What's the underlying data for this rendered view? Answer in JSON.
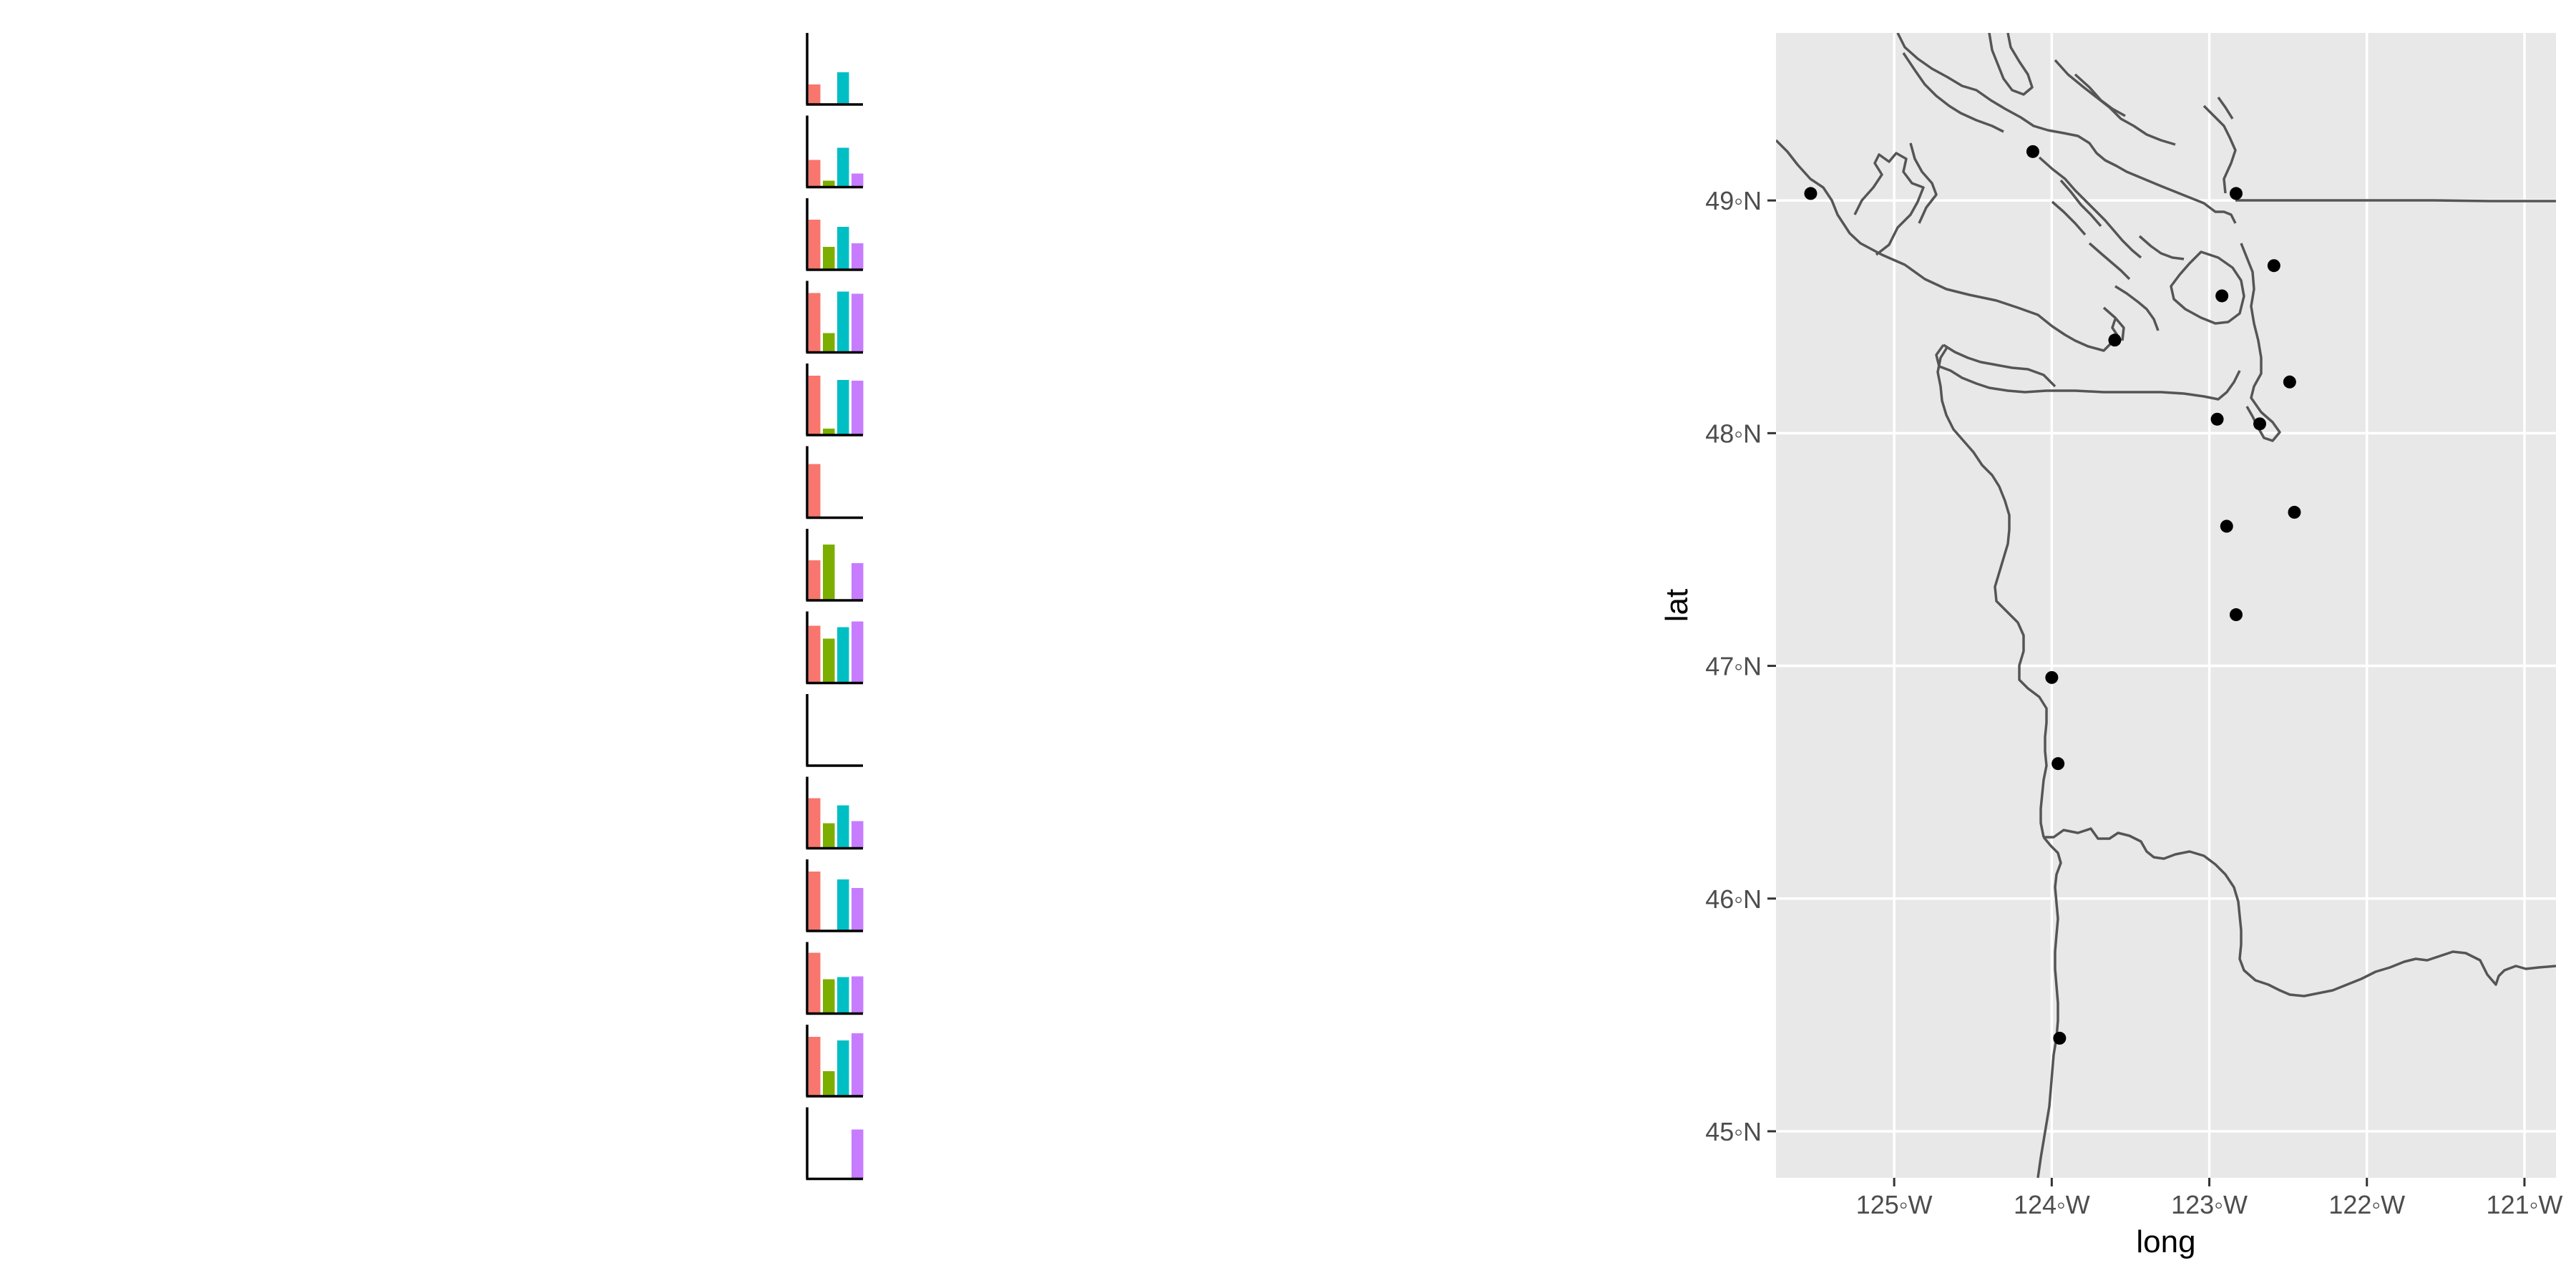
{
  "map": {
    "xlabel": "long",
    "ylabel": "lat",
    "x_ticks": [
      "125◦W",
      "124◦W",
      "123◦W",
      "122◦W",
      "121◦W"
    ],
    "x_tick_values": [
      -125,
      -124,
      -123,
      -122,
      -121
    ],
    "y_ticks": [
      "45◦N",
      "46◦N",
      "47◦N",
      "48◦N",
      "49◦N"
    ],
    "y_tick_values": [
      45,
      46,
      47,
      48,
      49
    ],
    "xlim": [
      -125.75,
      -120.8
    ],
    "ylim": [
      44.8,
      49.72
    ],
    "panel_color": "#e8e8e8",
    "gridline_color": "#ffffff",
    "outline_color": "#555555",
    "point_color": "#000000"
  },
  "chart_data": [
    {
      "type": "scatter",
      "xlabel": "long",
      "ylabel": "lat",
      "points": [
        {
          "long": -125.53,
          "lat": 49.03
        },
        {
          "long": -124.12,
          "lat": 49.21
        },
        {
          "long": -122.83,
          "lat": 49.03
        },
        {
          "long": -122.59,
          "lat": 48.72
        },
        {
          "long": -122.92,
          "lat": 48.59
        },
        {
          "long": -123.6,
          "lat": 48.4
        },
        {
          "long": -122.49,
          "lat": 48.22
        },
        {
          "long": -122.95,
          "lat": 48.06
        },
        {
          "long": -122.68,
          "lat": 48.04
        },
        {
          "long": -122.46,
          "lat": 47.66
        },
        {
          "long": -122.89,
          "lat": 47.6
        },
        {
          "long": -122.83,
          "lat": 47.22
        },
        {
          "long": -124.0,
          "lat": 46.95
        },
        {
          "long": -123.96,
          "lat": 46.58
        },
        {
          "long": -123.95,
          "lat": 45.4
        }
      ]
    },
    {
      "type": "bar",
      "series_colors": [
        "#f8766d",
        "#7cae00",
        "#00bfc4",
        "#c77cff"
      ],
      "panels": [
        {
          "values": [
            0.28,
            0,
            0.45,
            0
          ]
        },
        {
          "values": [
            0.38,
            0.09,
            0.55,
            0.19
          ]
        },
        {
          "values": [
            0.7,
            0.32,
            0.6,
            0.37
          ]
        },
        {
          "values": [
            0.83,
            0.27,
            0.85,
            0.82
          ]
        },
        {
          "values": [
            0.83,
            0.09,
            0.77,
            0.76
          ]
        },
        {
          "values": [
            0.75,
            0,
            0,
            0
          ]
        },
        {
          "values": [
            0.56,
            0.78,
            0,
            0.52
          ]
        },
        {
          "values": [
            0.8,
            0.62,
            0.78,
            0.86
          ]
        },
        {
          "values": [
            0,
            0,
            0,
            0
          ]
        },
        {
          "values": [
            0.7,
            0.35,
            0.6,
            0.38
          ]
        },
        {
          "values": [
            0.83,
            0,
            0.72,
            0.6
          ]
        },
        {
          "values": [
            0.85,
            0.48,
            0.51,
            0.52
          ]
        },
        {
          "values": [
            0.83,
            0.35,
            0.78,
            0.88
          ]
        },
        {
          "values": [
            0,
            0,
            0,
            0.69
          ]
        }
      ]
    }
  ]
}
